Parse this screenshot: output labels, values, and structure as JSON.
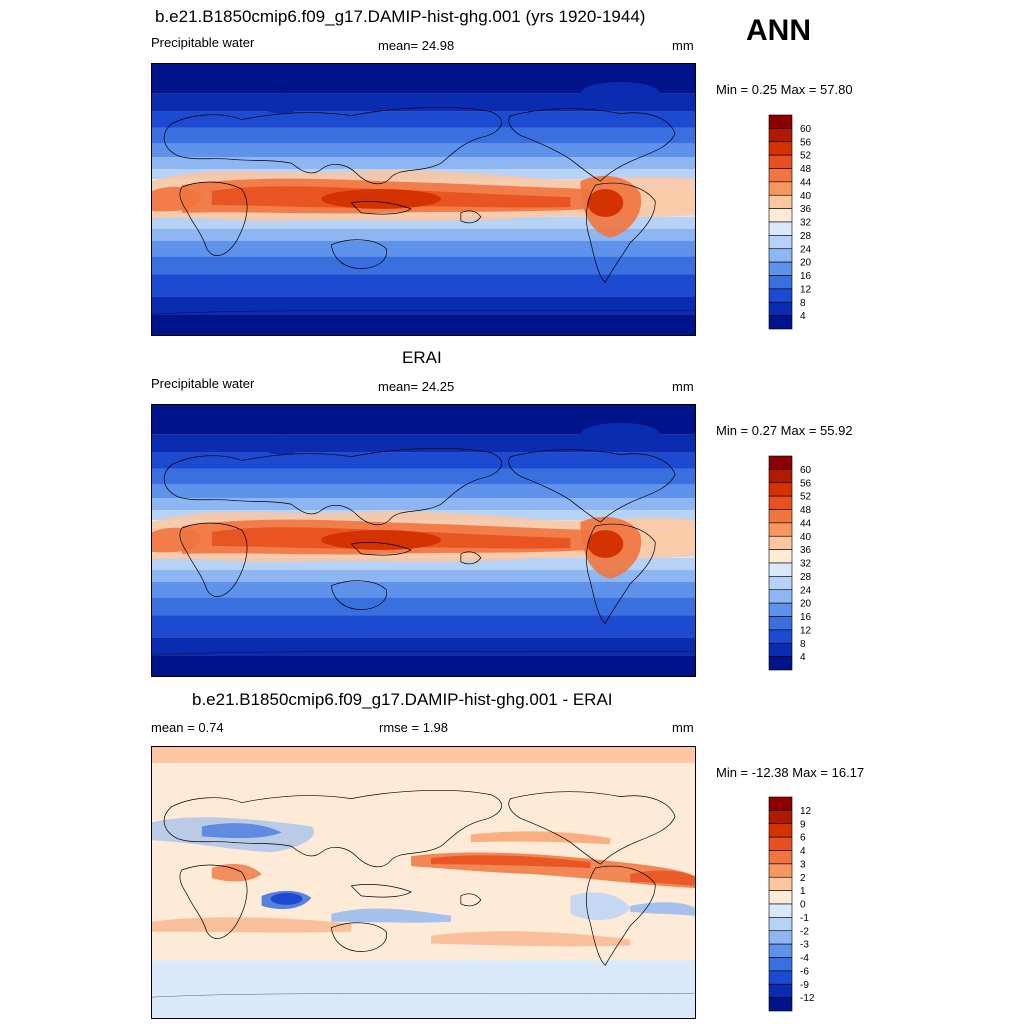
{
  "overall_label": "ANN",
  "panels": [
    {
      "title": "b.e21.B1850cmip6.f09_g17.DAMIP-hist-ghg.001 (yrs 1920-1944)",
      "left_label": "Precipitable water",
      "center_label": "mean=  24.98",
      "units": "mm",
      "minmax": "Min =   0.25 Max =  57.80",
      "colorbar": {
        "labels": [
          "60",
          "56",
          "52",
          "48",
          "44",
          "40",
          "36",
          "32",
          "28",
          "24",
          "20",
          "16",
          "12",
          "8",
          "4"
        ],
        "colors": [
          "#8B0000",
          "#B01A00",
          "#D43200",
          "#E8501F",
          "#F0753F",
          "#F7965E",
          "#FBC6A0",
          "#FDEBD8",
          "#DAE9FA",
          "#B6D2F7",
          "#8DB6F2",
          "#5E92EB",
          "#3A6FE0",
          "#1C4AD0",
          "#0A2CB0",
          "#00138A"
        ]
      },
      "field": "pw"
    },
    {
      "title": "ERAI",
      "left_label": "Precipitable water",
      "center_label": "mean=  24.25",
      "units": "mm",
      "minmax": "Min =   0.27 Max =  55.92",
      "colorbar": {
        "labels": [
          "60",
          "56",
          "52",
          "48",
          "44",
          "40",
          "36",
          "32",
          "28",
          "24",
          "20",
          "16",
          "12",
          "8",
          "4"
        ],
        "colors": [
          "#8B0000",
          "#B01A00",
          "#D43200",
          "#E8501F",
          "#F0753F",
          "#F7965E",
          "#FBC6A0",
          "#FDEBD8",
          "#DAE9FA",
          "#B6D2F7",
          "#8DB6F2",
          "#5E92EB",
          "#3A6FE0",
          "#1C4AD0",
          "#0A2CB0",
          "#00138A"
        ]
      },
      "field": "pw"
    },
    {
      "title": "b.e21.B1850cmip6.f09_g17.DAMIP-hist-ghg.001 - ERAI",
      "left_label": "mean =   0.74",
      "center_label": "rmse =   1.98",
      "units": "mm",
      "minmax": "Min = -12.38 Max =  16.17",
      "colorbar": {
        "labels": [
          "12",
          "9",
          "6",
          "4",
          "3",
          "2",
          "1",
          "0",
          "-1",
          "-2",
          "-3",
          "-4",
          "-6",
          "-9",
          "-12"
        ],
        "colors": [
          "#8B0000",
          "#B01A00",
          "#D43200",
          "#E8501F",
          "#F0753F",
          "#F7965E",
          "#FBC6A0",
          "#FDEBD8",
          "#DAE9FA",
          "#B6D2F7",
          "#8DB6F2",
          "#5E92EB",
          "#3A6FE0",
          "#1C4AD0",
          "#0A2CB0",
          "#00138A"
        ]
      },
      "field": "diff"
    }
  ]
}
